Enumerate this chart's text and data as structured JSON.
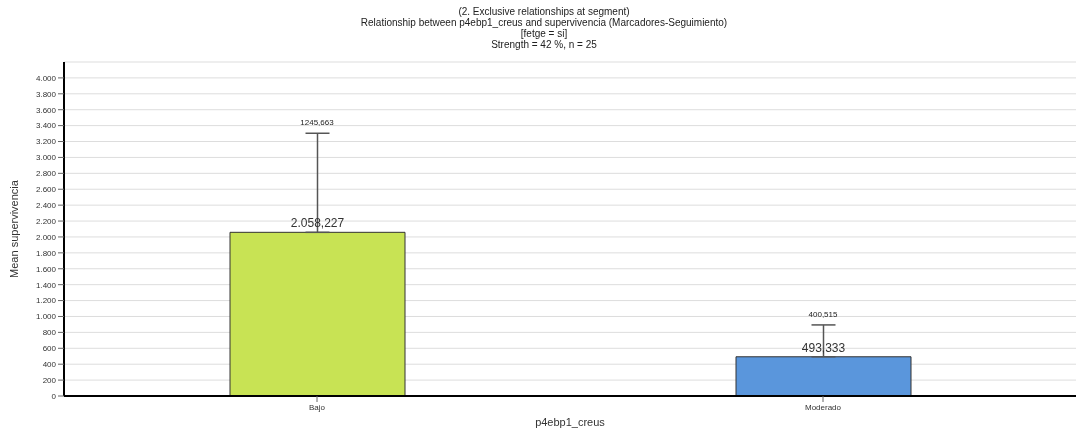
{
  "chart_data": {
    "type": "bar",
    "title": "(2. Exclusive relationships at segment)",
    "subtitle": "Relationship between p4ebp1_creus and supervivencia (Marcadores-Seguimiento)\n[fetge = si]\nStrength = 42 %, n = 25",
    "xlabel": "p4ebp1_creus",
    "ylabel": "Mean supervivencia",
    "categories": [
      "Bajo",
      "Moderado"
    ],
    "values": [
      2058.227,
      493.333
    ],
    "colors": [
      "#c8e354",
      "#5a96dc"
    ],
    "value_labels": [
      "2.058,227",
      "493,333"
    ],
    "errors": [
      [
        2058.227,
        3303.89
      ],
      [
        493.333,
        893.848
      ]
    ],
    "annotations": [
      {
        "text": "1245,663",
        "x": "Bajo",
        "y": 3303.89
      },
      {
        "text": "400,515",
        "x": "Moderado",
        "y": 893.848
      }
    ],
    "ylim": [
      0,
      4200
    ],
    "yticks": [
      0,
      200,
      400,
      600,
      800,
      {
        "value": 1000,
        "label": "1.000"
      },
      {
        "value": 1200,
        "label": "1.200"
      },
      {
        "value": 1400,
        "label": "1.400"
      },
      {
        "value": 1600,
        "label": "1.600"
      },
      {
        "value": 1800,
        "label": "1.800"
      },
      {
        "value": 2000,
        "label": "2.000"
      },
      {
        "value": 2200,
        "label": "2.200"
      },
      {
        "value": 2400,
        "label": "2.400"
      },
      {
        "value": 2600,
        "label": "2.600"
      },
      {
        "value": 2800,
        "label": "2.800"
      },
      {
        "value": 3000,
        "label": "3.000"
      },
      {
        "value": 3200,
        "label": "3.200"
      },
      {
        "value": 3400,
        "label": "3.400"
      },
      {
        "value": 3600,
        "label": "3.600"
      },
      {
        "value": 3800,
        "label": "3.800"
      },
      {
        "value": 4000,
        "label": "4.000"
      }
    ],
    "grid": "y"
  }
}
